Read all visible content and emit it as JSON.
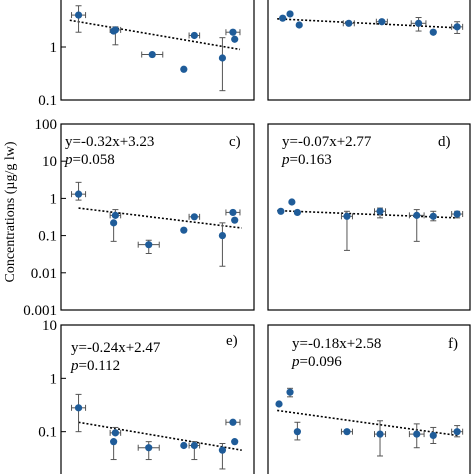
{
  "chart_data": {
    "type": "scatter",
    "ylabel": "Concentrations (µg/g lw)",
    "colors": {
      "point": "#1f5c99",
      "error": "#555555",
      "trend": "#000000",
      "frame": "#000000"
    },
    "panels": [
      {
        "id": "a",
        "letter": "",
        "yscale": "log",
        "ylim": [
          0.1,
          10
        ],
        "yticks": [
          {
            "value": 1,
            "label": "1"
          },
          {
            "value": 0.1,
            "label": "0.1"
          }
        ],
        "xlim": [
          0,
          11
        ],
        "equation": "",
        "p_value": "",
        "trend": [
          [
            0.5,
            3.2
          ],
          [
            10.2,
            0.9
          ]
        ],
        "points": [
          {
            "x": 1.0,
            "y": 4.0,
            "ylo": 1.9,
            "yhi": 6.0,
            "xerr": 0.4
          },
          {
            "x": 3.1,
            "y": 2.1,
            "ylo": 1.1,
            "yhi": 2.4,
            "xerr": 0.3
          },
          {
            "x": 3.0,
            "y": 2.0,
            "ylo": null,
            "yhi": null,
            "xerr": 0
          },
          {
            "x": 5.2,
            "y": 0.72,
            "ylo": null,
            "yhi": null,
            "xerr": 0.6
          },
          {
            "x": 7.0,
            "y": 0.38,
            "ylo": null,
            "yhi": null,
            "xerr": 0
          },
          {
            "x": 7.6,
            "y": 1.65,
            "ylo": null,
            "yhi": null,
            "xerr": 0.3
          },
          {
            "x": 9.2,
            "y": 0.62,
            "ylo": 0.15,
            "yhi": 1.5,
            "xerr": 0
          },
          {
            "x": 9.8,
            "y": 1.9,
            "ylo": null,
            "yhi": null,
            "xerr": 0.4
          },
          {
            "x": 9.9,
            "y": 1.4,
            "ylo": null,
            "yhi": null,
            "xerr": 0
          }
        ]
      },
      {
        "id": "b",
        "letter": "",
        "yscale": "log",
        "ylim": [
          0.1,
          10
        ],
        "yticks": [],
        "xlim": [
          0,
          11
        ],
        "equation": "",
        "p_value": "",
        "trend": [
          [
            0.5,
            3.4
          ],
          [
            10.3,
            2.3
          ]
        ],
        "points": [
          {
            "x": 0.8,
            "y": 3.5,
            "ylo": null,
            "yhi": null,
            "xerr": 0
          },
          {
            "x": 1.2,
            "y": 4.2,
            "ylo": null,
            "yhi": null,
            "xerr": 0
          },
          {
            "x": 1.7,
            "y": 2.6,
            "ylo": null,
            "yhi": null,
            "xerr": 0
          },
          {
            "x": 4.4,
            "y": 2.8,
            "ylo": null,
            "yhi": null,
            "xerr": 0.3
          },
          {
            "x": 6.2,
            "y": 3.0,
            "ylo": null,
            "yhi": null,
            "xerr": 0.3
          },
          {
            "x": 8.2,
            "y": 2.8,
            "ylo": 2.0,
            "yhi": 3.6,
            "xerr": 0.4
          },
          {
            "x": 9.0,
            "y": 1.9,
            "ylo": null,
            "yhi": null,
            "xerr": 0
          },
          {
            "x": 10.3,
            "y": 2.4,
            "ylo": 1.8,
            "yhi": 3.0,
            "xerr": 0.3
          }
        ]
      },
      {
        "id": "c",
        "letter": "c)",
        "yscale": "log",
        "ylim": [
          0.001,
          100
        ],
        "yticks": [
          {
            "value": 100,
            "label": "100"
          },
          {
            "value": 10,
            "label": "10"
          },
          {
            "value": 1,
            "label": "1"
          },
          {
            "value": 0.1,
            "label": "0.1"
          },
          {
            "value": 0.01,
            "label": "0.01"
          },
          {
            "value": 0.001,
            "label": "0.001"
          }
        ],
        "xlim": [
          0,
          11
        ],
        "equation": "y=-0.32x+3.23",
        "p_value": "=0.058",
        "p_letter": "p",
        "trend": [
          [
            1.0,
            0.55
          ],
          [
            10.3,
            0.16
          ]
        ],
        "points": [
          {
            "x": 1.0,
            "y": 1.3,
            "ylo": 0.9,
            "yhi": 2.7,
            "xerr": 0.4
          },
          {
            "x": 3.1,
            "y": 0.35,
            "ylo": null,
            "yhi": 0.5,
            "xerr": 0.3
          },
          {
            "x": 3.0,
            "y": 0.22,
            "ylo": 0.07,
            "yhi": null,
            "xerr": 0
          },
          {
            "x": 5.0,
            "y": 0.057,
            "ylo": 0.033,
            "yhi": 0.075,
            "xerr": 0.6
          },
          {
            "x": 7.0,
            "y": 0.14,
            "ylo": null,
            "yhi": null,
            "xerr": 0
          },
          {
            "x": 7.6,
            "y": 0.32,
            "ylo": null,
            "yhi": null,
            "xerr": 0.3
          },
          {
            "x": 9.2,
            "y": 0.1,
            "ylo": 0.015,
            "yhi": 0.22,
            "xerr": 0
          },
          {
            "x": 9.8,
            "y": 0.42,
            "ylo": null,
            "yhi": null,
            "xerr": 0.4
          },
          {
            "x": 9.9,
            "y": 0.26,
            "ylo": null,
            "yhi": null,
            "xerr": 0
          }
        ]
      },
      {
        "id": "d",
        "letter": "d)",
        "yscale": "log",
        "ylim": [
          0.001,
          100
        ],
        "yticks": [],
        "xlim": [
          0,
          11
        ],
        "equation": "y=-0.07x+2.77",
        "p_value": "=0.163",
        "p_letter": "p",
        "trend": [
          [
            0.5,
            0.47
          ],
          [
            10.3,
            0.3
          ]
        ],
        "points": [
          {
            "x": 0.7,
            "y": 0.45,
            "ylo": null,
            "yhi": null,
            "xerr": 0
          },
          {
            "x": 1.3,
            "y": 0.8,
            "ylo": null,
            "yhi": null,
            "xerr": 0
          },
          {
            "x": 1.6,
            "y": 0.42,
            "ylo": null,
            "yhi": null,
            "xerr": 0
          },
          {
            "x": 4.3,
            "y": 0.33,
            "ylo": 0.04,
            "yhi": 0.45,
            "xerr": 0.3
          },
          {
            "x": 6.1,
            "y": 0.45,
            "ylo": 0.3,
            "yhi": 0.55,
            "xerr": 0.3
          },
          {
            "x": 8.1,
            "y": 0.35,
            "ylo": 0.07,
            "yhi": 0.5,
            "xerr": 0.4
          },
          {
            "x": 9.0,
            "y": 0.33,
            "ylo": 0.25,
            "yhi": 0.45,
            "xerr": 0
          },
          {
            "x": 10.3,
            "y": 0.38,
            "ylo": 0.3,
            "yhi": 0.45,
            "xerr": 0.3
          }
        ]
      },
      {
        "id": "e",
        "letter": "e)",
        "yscale": "log",
        "ylim": [
          0.01,
          10
        ],
        "yticks": [
          {
            "value": 10,
            "label": "10"
          },
          {
            "value": 1,
            "label": "1"
          },
          {
            "value": 0.1,
            "label": "0.1"
          }
        ],
        "xlim": [
          0,
          11
        ],
        "equation": "y=-0.24x+2.47",
        "p_value": "=0.112",
        "p_letter": "p",
        "trend": [
          [
            1.0,
            0.15
          ],
          [
            10.3,
            0.045
          ]
        ],
        "points": [
          {
            "x": 1.0,
            "y": 0.28,
            "ylo": 0.1,
            "yhi": 0.5,
            "xerr": 0.4
          },
          {
            "x": 3.1,
            "y": 0.095,
            "ylo": null,
            "yhi": 0.12,
            "xerr": 0.3
          },
          {
            "x": 3.0,
            "y": 0.065,
            "ylo": 0.03,
            "yhi": null,
            "xerr": 0
          },
          {
            "x": 5.0,
            "y": 0.05,
            "ylo": 0.03,
            "yhi": 0.065,
            "xerr": 0.6
          },
          {
            "x": 7.0,
            "y": 0.055,
            "ylo": null,
            "yhi": null,
            "xerr": 0
          },
          {
            "x": 7.6,
            "y": 0.055,
            "ylo": 0.03,
            "yhi": 0.065,
            "xerr": 0.3
          },
          {
            "x": 9.2,
            "y": 0.045,
            "ylo": 0.02,
            "yhi": 0.06,
            "xerr": 0
          },
          {
            "x": 9.8,
            "y": 0.15,
            "ylo": null,
            "yhi": null,
            "xerr": 0.4
          },
          {
            "x": 9.9,
            "y": 0.065,
            "ylo": null,
            "yhi": null,
            "xerr": 0
          }
        ]
      },
      {
        "id": "f",
        "letter": "f)",
        "yscale": "log",
        "ylim": [
          0.01,
          10
        ],
        "yticks": [],
        "xlim": [
          0,
          11
        ],
        "equation": "y=-0.18x+2.58",
        "p_value": "=0.096",
        "p_letter": "p",
        "trend": [
          [
            0.5,
            0.25
          ],
          [
            10.3,
            0.085
          ]
        ],
        "points": [
          {
            "x": 0.6,
            "y": 0.33,
            "ylo": null,
            "yhi": null,
            "xerr": 0
          },
          {
            "x": 1.2,
            "y": 0.55,
            "ylo": 0.45,
            "yhi": 0.65,
            "xerr": 0
          },
          {
            "x": 1.6,
            "y": 0.1,
            "ylo": 0.07,
            "yhi": 0.15,
            "xerr": 0
          },
          {
            "x": 4.3,
            "y": 0.1,
            "ylo": null,
            "yhi": null,
            "xerr": 0.3
          },
          {
            "x": 6.1,
            "y": 0.09,
            "ylo": 0.035,
            "yhi": 0.16,
            "xerr": 0.3
          },
          {
            "x": 8.1,
            "y": 0.09,
            "ylo": 0.05,
            "yhi": 0.14,
            "xerr": 0.4
          },
          {
            "x": 9.0,
            "y": 0.085,
            "ylo": 0.06,
            "yhi": 0.12,
            "xerr": 0
          },
          {
            "x": 10.3,
            "y": 0.1,
            "ylo": 0.08,
            "yhi": 0.13,
            "xerr": 0.3
          }
        ]
      }
    ]
  }
}
